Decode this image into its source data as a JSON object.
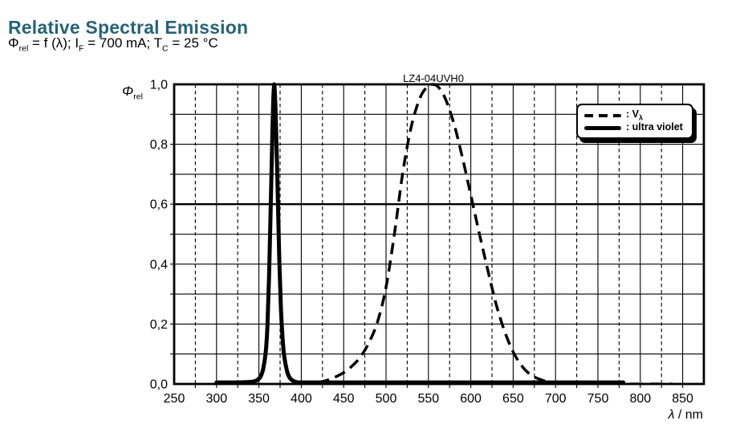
{
  "header": {
    "title": "Relative Spectral Emission",
    "subtitle": {
      "phi": "Φ",
      "phi_sub": "rel",
      "seg1": " = f (λ); I",
      "if_sub": "F",
      "seg2": " = 700 mA; T",
      "tc_sub": "C",
      "seg3": " = 25 °C"
    }
  },
  "colors": {
    "title_accent": "#266379",
    "watermark_gray": "#b4b4b4",
    "curve_black": "#000000"
  },
  "chart_data": {
    "type": "line",
    "watermark": "LZ4-04UVH0",
    "y_axis_label": {
      "symbol": "Φ",
      "sub": "rel"
    },
    "x_axis_label": {
      "symbol": "λ",
      "suffix": " / nm"
    },
    "xlim": [
      250,
      875
    ],
    "ylim": [
      0,
      1
    ],
    "grid": true,
    "x_tick_labels": [
      {
        "value": 250,
        "label": "250"
      },
      {
        "value": 300,
        "label": "300"
      },
      {
        "value": 350,
        "label": "350"
      },
      {
        "value": 400,
        "label": "400"
      },
      {
        "value": 450,
        "label": "450"
      },
      {
        "value": 500,
        "label": "500"
      },
      {
        "value": 550,
        "label": "550"
      },
      {
        "value": 600,
        "label": "600"
      },
      {
        "value": 650,
        "label": "650"
      },
      {
        "value": 700,
        "label": "700"
      },
      {
        "value": 750,
        "label": "750"
      },
      {
        "value": 800,
        "label": "800"
      },
      {
        "value": 850,
        "label": "850"
      }
    ],
    "y_tick_labels": [
      {
        "value": 1.0,
        "label": "1,0"
      },
      {
        "value": 0.8,
        "label": "0,8"
      },
      {
        "value": 0.6,
        "label": "0,6"
      },
      {
        "value": 0.4,
        "label": "0,4"
      },
      {
        "value": 0.2,
        "label": "0,2"
      },
      {
        "value": 0.0,
        "label": "0,0"
      }
    ],
    "x_grid_solid": [
      300,
      350,
      400,
      450,
      500,
      550,
      600,
      650,
      700,
      750,
      800,
      850
    ],
    "x_grid_dashed": [
      275,
      325,
      375,
      425,
      475,
      525,
      575,
      625,
      675,
      725,
      775,
      825
    ],
    "y_grid": [
      0.1,
      0.2,
      0.3,
      0.4,
      0.5,
      0.6,
      0.7,
      0.8,
      0.9
    ],
    "y_grid_emphasis": [
      0.6
    ],
    "legend": {
      "position": "top-right",
      "entries": [
        {
          "id": "v-lambda",
          "style": "dashed",
          "label_prefix": ": V",
          "label_sub": "λ"
        },
        {
          "id": "ultra-violet",
          "style": "solid",
          "label_prefix": ": ultra violet",
          "label_sub": ""
        }
      ]
    },
    "series": [
      {
        "name": "v-lambda",
        "style": "dashed",
        "stroke_width": 3.5,
        "points": [
          [
            420,
            0.004
          ],
          [
            430,
            0.012
          ],
          [
            440,
            0.023
          ],
          [
            450,
            0.038
          ],
          [
            460,
            0.06
          ],
          [
            470,
            0.091
          ],
          [
            480,
            0.139
          ],
          [
            490,
            0.208
          ],
          [
            500,
            0.323
          ],
          [
            510,
            0.503
          ],
          [
            520,
            0.71
          ],
          [
            530,
            0.862
          ],
          [
            540,
            0.954
          ],
          [
            548,
            0.99
          ],
          [
            555,
            1.0
          ],
          [
            562,
            0.99
          ],
          [
            570,
            0.952
          ],
          [
            580,
            0.87
          ],
          [
            590,
            0.757
          ],
          [
            600,
            0.631
          ],
          [
            610,
            0.503
          ],
          [
            620,
            0.381
          ],
          [
            630,
            0.265
          ],
          [
            640,
            0.175
          ],
          [
            650,
            0.107
          ],
          [
            660,
            0.061
          ],
          [
            670,
            0.032
          ],
          [
            680,
            0.017
          ],
          [
            690,
            0.008
          ],
          [
            700,
            0.004
          ],
          [
            708,
            0.003
          ]
        ]
      },
      {
        "name": "ultra-violet",
        "style": "solid",
        "stroke_width": 5,
        "points": [
          [
            300,
            0.005
          ],
          [
            320,
            0.005
          ],
          [
            335,
            0.006
          ],
          [
            343,
            0.008
          ],
          [
            348,
            0.013
          ],
          [
            352,
            0.025
          ],
          [
            355,
            0.05
          ],
          [
            358,
            0.105
          ],
          [
            360,
            0.19
          ],
          [
            362,
            0.36
          ],
          [
            364,
            0.6
          ],
          [
            366,
            0.85
          ],
          [
            367,
            0.95
          ],
          [
            368,
            1.0
          ],
          [
            369,
            0.96
          ],
          [
            370,
            0.88
          ],
          [
            372,
            0.66
          ],
          [
            374,
            0.42
          ],
          [
            376,
            0.25
          ],
          [
            378,
            0.15
          ],
          [
            380,
            0.09
          ],
          [
            383,
            0.045
          ],
          [
            386,
            0.022
          ],
          [
            390,
            0.011
          ],
          [
            395,
            0.006
          ],
          [
            400,
            0.005
          ],
          [
            450,
            0.005
          ],
          [
            500,
            0.005
          ],
          [
            550,
            0.005
          ],
          [
            600,
            0.005
          ],
          [
            650,
            0.005
          ],
          [
            700,
            0.005
          ],
          [
            740,
            0.005
          ],
          [
            780,
            0.005
          ]
        ]
      }
    ],
    "baseline_artifact": {
      "x_start": 785,
      "x_end": 838,
      "y_value": 0.003
    }
  }
}
